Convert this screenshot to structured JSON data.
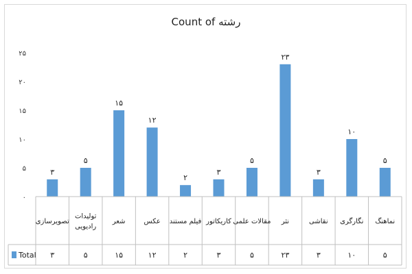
{
  "chart_data": {
    "type": "bar",
    "title": "Count of رشته",
    "categories": [
      [
        "تصویرسازی"
      ],
      [
        "تولیدات",
        "رادیویی"
      ],
      [
        "شعر"
      ],
      [
        "عکس"
      ],
      [
        "فیلم مستند"
      ],
      [
        "کاریکاتور"
      ],
      [
        "مقالات علمی"
      ],
      [
        "نثر"
      ],
      [
        "نقاشی"
      ],
      [
        "نگارگری"
      ],
      [
        "نماهنگ"
      ]
    ],
    "values": [
      3,
      5,
      15,
      12,
      2,
      3,
      5,
      23,
      3,
      10,
      5
    ],
    "value_labels": [
      "۳",
      "۵",
      "۱۵",
      "۱۲",
      "۲",
      "۳",
      "۵",
      "۲۳",
      "۳",
      "۱۰",
      "۵"
    ],
    "ylim": [
      0,
      25
    ],
    "yticks": [
      0,
      5,
      10,
      15,
      20,
      25
    ],
    "ytick_labels": [
      "۰",
      "۵",
      "۱۰",
      "۱۵",
      "۲۰",
      "۲۵"
    ],
    "series": [
      {
        "name": "Total",
        "color": "#5b9bd5"
      }
    ],
    "gridlines": false,
    "data_table": true
  }
}
